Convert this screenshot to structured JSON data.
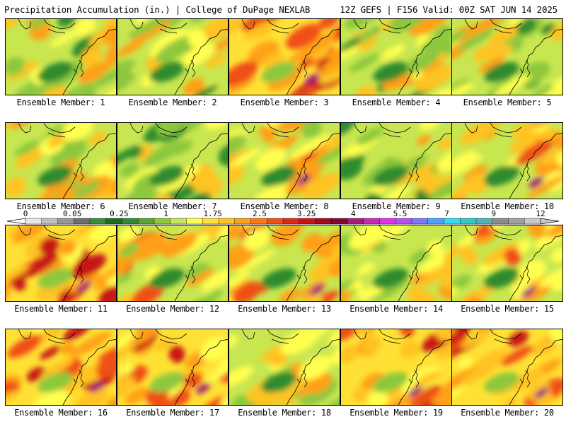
{
  "header": {
    "title_left": "Precipitation Accumulation (in.) | College of DuPage NEXLAB",
    "title_right": "12Z GEFS | F156 Valid: 00Z SAT JUN 14 2025"
  },
  "members": [
    {
      "label": "Ensemble Member: 1",
      "intensity": 0.3
    },
    {
      "label": "Ensemble Member: 2",
      "intensity": 0.35
    },
    {
      "label": "Ensemble Member: 3",
      "intensity": 0.8
    },
    {
      "label": "Ensemble Member: 4",
      "intensity": 0.35
    },
    {
      "label": "Ensemble Member: 5",
      "intensity": 0.3
    },
    {
      "label": "Ensemble Member: 6",
      "intensity": 0.4
    },
    {
      "label": "Ensemble Member: 7",
      "intensity": 0.2
    },
    {
      "label": "Ensemble Member: 8",
      "intensity": 0.55
    },
    {
      "label": "Ensemble Member: 9",
      "intensity": 0.25
    },
    {
      "label": "Ensemble Member: 10",
      "intensity": 0.5
    },
    {
      "label": "Ensemble Member: 11",
      "intensity": 0.75
    },
    {
      "label": "Ensemble Member: 12",
      "intensity": 0.45
    },
    {
      "label": "Ensemble Member: 13",
      "intensity": 0.6
    },
    {
      "label": "Ensemble Member: 14",
      "intensity": 0.4
    },
    {
      "label": "Ensemble Member: 15",
      "intensity": 0.55
    },
    {
      "label": "Ensemble Member: 16",
      "intensity": 0.75
    },
    {
      "label": "Ensemble Member: 17",
      "intensity": 0.65
    },
    {
      "label": "Ensemble Member: 18",
      "intensity": 0.45
    },
    {
      "label": "Ensemble Member: 19",
      "intensity": 0.7
    },
    {
      "label": "Ensemble Member: 20",
      "intensity": 0.7
    }
  ],
  "colorbar": {
    "tick_labels": [
      "0",
      "0.05",
      "0.25",
      "1",
      "1.75",
      "2.5",
      "3.25",
      "4",
      "5.5",
      "7",
      "9",
      "12"
    ],
    "colors": [
      "#e8e8e8",
      "#c0c0c0",
      "#969696",
      "#6e6e6e",
      "#3c8c3c",
      "#1e6e1e",
      "#2e8b2e",
      "#5aa532",
      "#8cc83c",
      "#c8e650",
      "#ffff50",
      "#ffe135",
      "#ffc320",
      "#ffa014",
      "#ff7814",
      "#f05014",
      "#e12814",
      "#c81414",
      "#a00a1e",
      "#820a32",
      "#a01e78",
      "#c828b4",
      "#e632e6",
      "#b450f0",
      "#7878ff",
      "#50a0ff",
      "#32dcf0",
      "#32c8c8",
      "#50b4b4",
      "#8c8c8c",
      "#a0a0a0",
      "#c8c8c8"
    ]
  }
}
